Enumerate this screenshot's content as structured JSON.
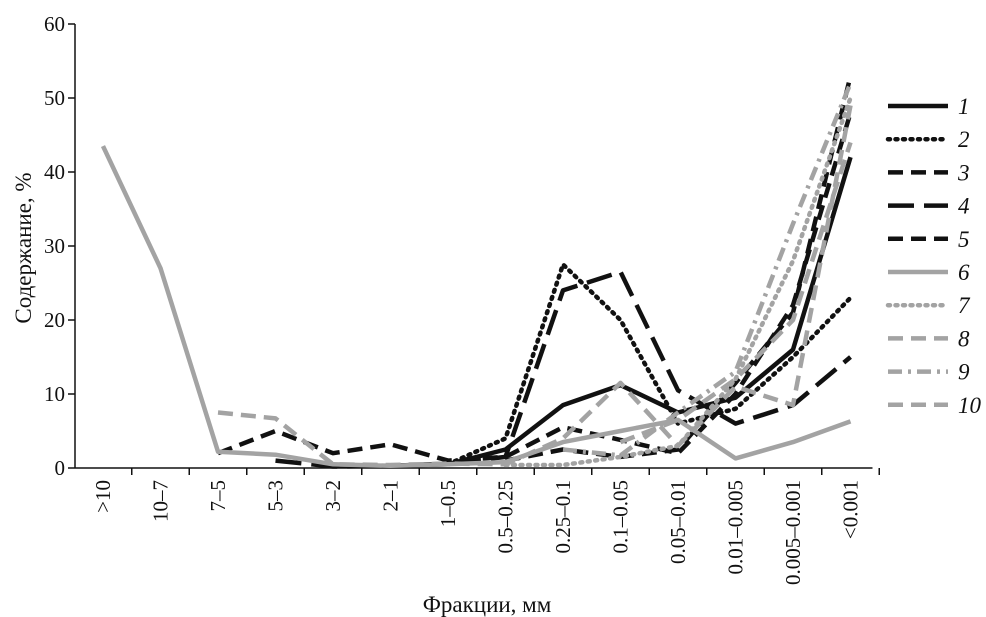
{
  "chart_data": {
    "type": "line",
    "xlabel": "Фракции, мм",
    "ylabel": "Содержание, %",
    "ylim": [
      0,
      60
    ],
    "yticks": [
      "0",
      "10",
      "20",
      "30",
      "40",
      "50",
      "60"
    ],
    "grid": false,
    "legend_position": "right",
    "categories": [
      ">10",
      "10–7",
      "7–5",
      "5–3",
      "3–2",
      "2–1",
      "1–0.5",
      "0.5–0.25",
      "0.25–0.1",
      "0.1–0.05",
      "0.05–0.01",
      "0.01–0.005",
      "0.005–0.001",
      "<0.001"
    ],
    "series": [
      {
        "name": "1",
        "color": "#111111",
        "dash": "solid",
        "width": 4.5,
        "values": [
          null,
          null,
          null,
          null,
          0.3,
          0.3,
          0.5,
          2.5,
          8.5,
          11.2,
          7.5,
          9.5,
          16.0,
          42.0
        ]
      },
      {
        "name": "2",
        "color": "#111111",
        "dash": "dot",
        "width": 4.5,
        "values": [
          null,
          null,
          null,
          null,
          null,
          null,
          0.5,
          4.0,
          27.5,
          20.0,
          6.0,
          8.0,
          15.0,
          23.0
        ]
      },
      {
        "name": "3",
        "color": "#111111",
        "dash": "dash",
        "width": 4.5,
        "values": [
          null,
          null,
          null,
          null,
          null,
          null,
          null,
          1.0,
          2.5,
          1.5,
          2.5,
          11.5,
          21.0,
          53.0
        ]
      },
      {
        "name": "4",
        "color": "#111111",
        "dash": "longdash",
        "width": 4.5,
        "values": [
          null,
          null,
          null,
          1.0,
          0.2,
          0.3,
          0.6,
          1.5,
          24.0,
          26.5,
          10.5,
          6.0,
          8.5,
          15.0
        ]
      },
      {
        "name": "5",
        "color": "#111111",
        "dash": "dash",
        "width": 4.5,
        "values": [
          null,
          null,
          2.0,
          5.0,
          2.0,
          3.2,
          1.0,
          1.5,
          5.5,
          3.8,
          2.0,
          10.0,
          22.0,
          48.0
        ]
      },
      {
        "name": "6",
        "color": "#a3a3a3",
        "dash": "solid",
        "width": 4.5,
        "values": [
          43.5,
          27.0,
          2.2,
          1.8,
          0.5,
          0.3,
          0.5,
          0.8,
          3.5,
          5.0,
          6.5,
          1.3,
          3.5,
          6.3
        ]
      },
      {
        "name": "7",
        "color": "#a3a3a3",
        "dash": "dot",
        "width": 4.5,
        "values": [
          null,
          null,
          null,
          null,
          null,
          null,
          null,
          0.4,
          0.4,
          1.5,
          3.0,
          12.0,
          28.0,
          50.0
        ]
      },
      {
        "name": "8",
        "color": "#a3a3a3",
        "dash": "dash",
        "width": 4.5,
        "values": [
          null,
          null,
          7.5,
          6.7,
          0.5,
          0.4,
          0.6,
          0.5,
          4.0,
          11.5,
          3.0,
          11.0,
          8.5,
          49.0
        ]
      },
      {
        "name": "9",
        "color": "#a3a3a3",
        "dash": "dashdot",
        "width": 4.5,
        "values": [
          null,
          null,
          null,
          null,
          null,
          null,
          null,
          null,
          2.5,
          1.7,
          7.5,
          13.0,
          33.0,
          52.0
        ]
      },
      {
        "name": "10",
        "color": "#a3a3a3",
        "dash": "dash",
        "width": 4.5,
        "values": [
          null,
          null,
          null,
          null,
          null,
          null,
          null,
          null,
          null,
          3.5,
          6.5,
          12.0,
          20.0,
          44.0
        ]
      }
    ]
  }
}
